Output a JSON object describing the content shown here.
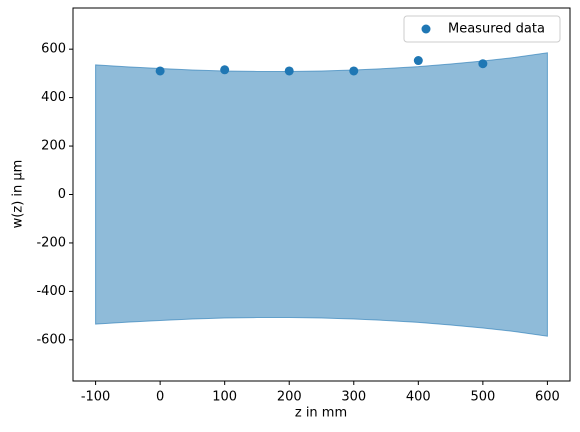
{
  "chart_data": {
    "type": "scatter",
    "xlabel": "z in mm",
    "ylabel": "w(z) in µm",
    "series": [
      {
        "name": "Measured data",
        "color": "#1f77b4",
        "x": [
          0,
          100,
          200,
          300,
          400,
          500
        ],
        "values": [
          510,
          515,
          510,
          510,
          553,
          540
        ]
      }
    ],
    "band": {
      "color": "#1f77b4",
      "x": [
        -100,
        -50,
        0,
        50,
        100,
        150,
        200,
        250,
        300,
        350,
        400,
        450,
        500,
        550,
        600
      ],
      "upper": [
        535,
        527,
        520,
        514,
        510,
        508,
        508,
        510,
        514,
        520,
        528,
        539,
        551,
        566,
        585
      ],
      "lower": [
        -535,
        -527,
        -520,
        -514,
        -510,
        -508,
        -508,
        -510,
        -514,
        -520,
        -528,
        -539,
        -551,
        -566,
        -585
      ]
    },
    "xlim": [
      -135,
      635
    ],
    "ylim": [
      -770,
      770
    ],
    "xticks": [
      -100,
      0,
      100,
      200,
      300,
      400,
      500,
      600
    ],
    "yticks": [
      -600,
      -400,
      -200,
      0,
      200,
      400,
      600
    ],
    "legend": "upper right"
  }
}
